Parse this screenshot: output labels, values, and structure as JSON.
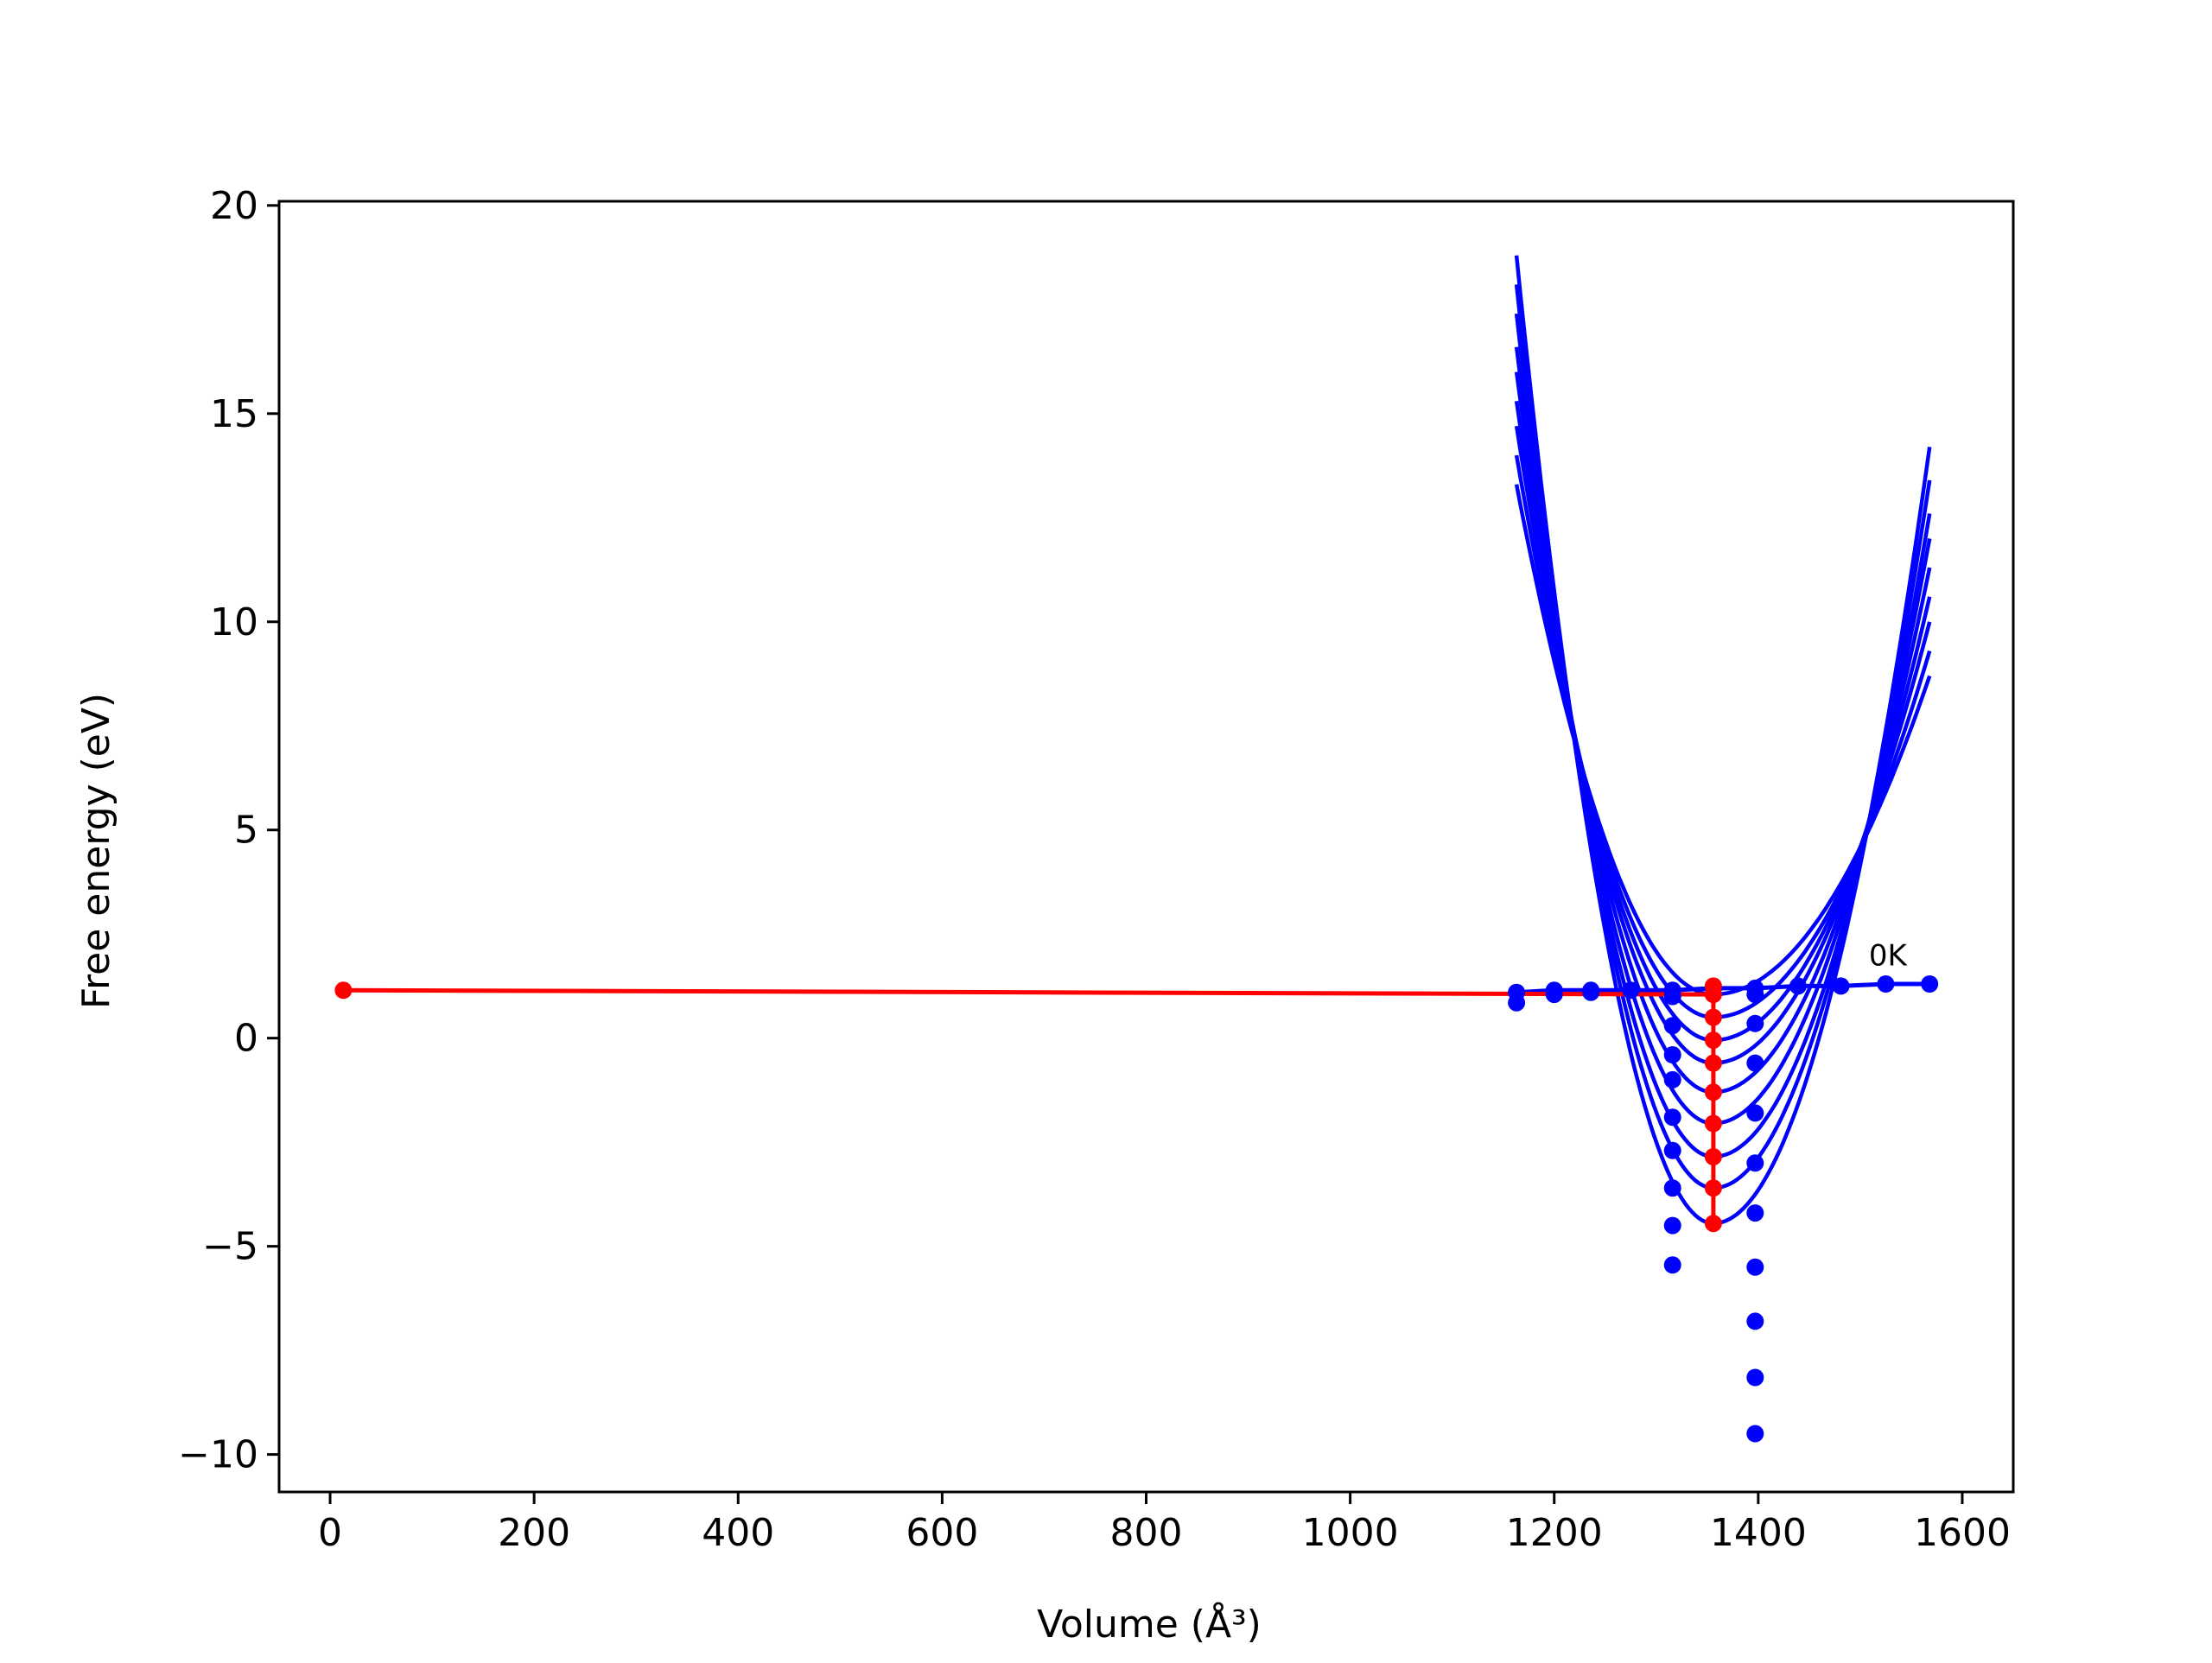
{
  "chart_data": {
    "type": "line",
    "title": "",
    "xlabel": "Volume (Å³)",
    "ylabel": "Free energy (eV)",
    "xlim": [
      -50,
      1650
    ],
    "ylim": [
      -10.9,
      20.1
    ],
    "xticks": [
      0,
      200,
      400,
      600,
      800,
      1000,
      1200,
      1400,
      1600
    ],
    "yticks": [
      -10,
      -5,
      0,
      5,
      10,
      15,
      20
    ],
    "grid": false,
    "legend": "none",
    "colors": {
      "curves": "#0000ff",
      "minima": "#ff0000"
    },
    "annotations": [
      {
        "text": "0K",
        "x": 1527,
        "y": 1.75
      }
    ],
    "fit_curves": {
      "x_start": 1163,
      "x_end": 1568,
      "x_min": 1356,
      "minima_y": [
        1.05,
        0.5,
        -0.05,
        -0.6,
        -1.3,
        -2.05,
        -2.85,
        -3.6,
        -4.45
      ],
      "left_end_y": [
        13.3,
        14.0,
        14.7,
        15.3,
        16.0,
        16.6,
        17.4,
        18.1,
        18.8
      ],
      "right_end_y": [
        8.7,
        9.3,
        10.0,
        10.6,
        11.3,
        12.0,
        12.6,
        13.4,
        14.2
      ]
    },
    "series": [
      {
        "type": "line",
        "x": [
          1163,
          1200,
          1236,
          1275,
          1316,
          1356,
          1397,
          1439,
          1481,
          1525,
          1568
        ],
        "y": [
          1.1,
          1.15,
          1.15,
          1.15,
          1.15,
          1.2,
          1.2,
          1.25,
          1.25,
          1.3,
          1.3
        ]
      },
      {
        "type": "scatter",
        "x": [
          1163,
          1200,
          1236,
          1316,
          1316,
          1316,
          1316,
          1316,
          1316,
          1316,
          1316,
          1316,
          1397,
          1397,
          1397,
          1397,
          1397,
          1397,
          1397,
          1397,
          1397,
          1397
        ],
        "y": [
          0.85,
          1.05,
          1.1,
          0.3,
          -0.4,
          -1.0,
          -1.9,
          -2.7,
          -3.6,
          -4.5,
          -5.45,
          1.0,
          0.35,
          -0.6,
          -1.8,
          -3.0,
          -4.2,
          -5.5,
          -6.8,
          -8.15,
          -9.5,
          1.05
        ]
      },
      {
        "type": "line",
        "x": [
          13,
          1356
        ],
        "y": [
          1.15,
          1.05
        ]
      },
      {
        "type": "line",
        "x": [
          1356,
          1356,
          1356,
          1356,
          1356,
          1356,
          1356,
          1356,
          1356,
          1356
        ],
        "y": [
          1.25,
          1.05,
          0.5,
          -0.05,
          -0.6,
          -1.3,
          -2.05,
          -2.85,
          -3.6,
          -4.45
        ]
      }
    ]
  }
}
